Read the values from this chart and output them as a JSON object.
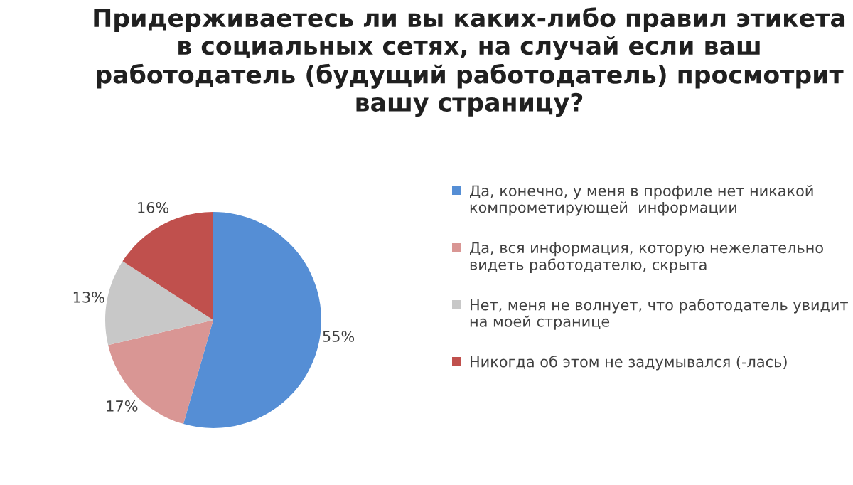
{
  "chart_data": {
    "type": "pie",
    "title": "Придерживаетесь ли вы каких-либо правил этикета в социальных сетях, на случай если ваш работодатель (будущий работодатель) просмотрит вашу страницу?",
    "categories": [
      "Да, конечно, у меня в профиле нет никакой компрометирующей  информации",
      "Да, вся информация, которую нежелательно видеть работодателю, скрыта",
      "Нет, меня не волнует, что работодатель увидит на моей странице",
      "Никогда об этом не задумывался (-лась)"
    ],
    "values": [
      55,
      17,
      13,
      16
    ],
    "colors": [
      "#558ed5",
      "#d99694",
      "#c8c8c8",
      "#c0504d"
    ],
    "value_labels": [
      "55%",
      "17%",
      "13%",
      "16%"
    ],
    "legend": "right"
  }
}
